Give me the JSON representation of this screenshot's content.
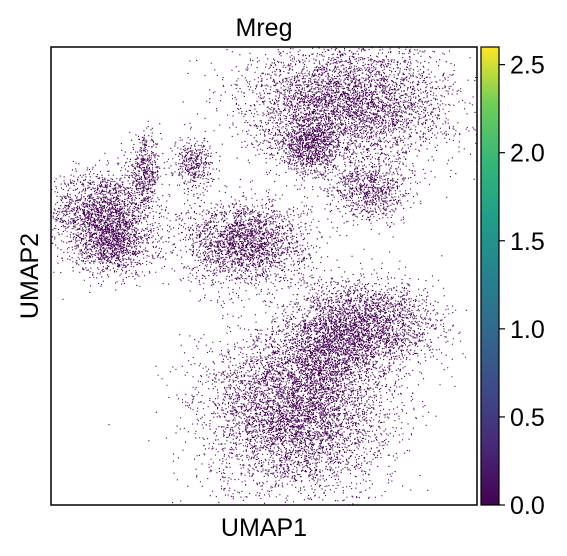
{
  "chart_data": {
    "type": "scatter",
    "title": "Mreg",
    "xlabel": "UMAP1",
    "ylabel": "UMAP2",
    "point_color": "#440154",
    "grid": false,
    "colorbar": {
      "min": 0.0,
      "max": 2.6,
      "colormap": "viridis",
      "ticks": [
        0.0,
        0.5,
        1.0,
        1.5,
        2.0,
        2.5
      ],
      "tick_labels": [
        "0.0",
        "0.5",
        "1.0",
        "1.5",
        "2.0",
        "2.5"
      ]
    },
    "clusters": [
      {
        "center": [
          -6.2,
          1.8
        ],
        "spread": [
          0.9,
          0.55
        ],
        "count": 1800
      },
      {
        "center": [
          -5.8,
          0.9
        ],
        "spread": [
          0.7,
          0.4
        ],
        "count": 900
      },
      {
        "center": [
          -4.7,
          2.9
        ],
        "spread": [
          0.28,
          0.45
        ],
        "count": 450
      },
      {
        "center": [
          -3.0,
          3.1
        ],
        "spread": [
          0.35,
          0.35
        ],
        "count": 380
      },
      {
        "center": [
          -1.2,
          1.0
        ],
        "spread": [
          1.1,
          0.55
        ],
        "count": 2200
      },
      {
        "center": [
          2.5,
          4.7
        ],
        "spread": [
          1.8,
          0.8
        ],
        "count": 4200
      },
      {
        "center": [
          1.1,
          3.6
        ],
        "spread": [
          0.6,
          0.4
        ],
        "count": 900
      },
      {
        "center": [
          3.2,
          2.4
        ],
        "spread": [
          0.7,
          0.4
        ],
        "count": 800
      },
      {
        "center": [
          3.0,
          -1.2
        ],
        "spread": [
          1.3,
          0.6
        ],
        "count": 2600
      },
      {
        "center": [
          0.6,
          -3.5
        ],
        "spread": [
          1.6,
          1.1
        ],
        "count": 5200
      },
      {
        "center": [
          1.6,
          -2.0
        ],
        "spread": [
          0.8,
          0.5
        ],
        "count": 900
      }
    ]
  }
}
